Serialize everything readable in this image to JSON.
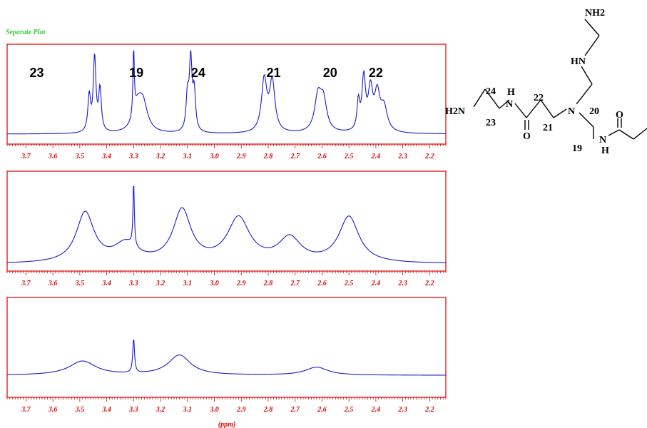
{
  "header": {
    "label": "Separate Plot"
  },
  "colors": {
    "frame": "#dd0000",
    "axis": "#dd0000",
    "trace": "#1a1acc",
    "header": "#33cc33",
    "structure": "#000000"
  },
  "chart_data": [
    {
      "type": "line",
      "x_unit": "ppm",
      "xlim": [
        3.77,
        2.14
      ],
      "xticks": [
        "3.7",
        "3.6",
        "3.5",
        "3.4",
        "3.3",
        "3.2",
        "3.1",
        "3.0",
        "2.9",
        "2.8",
        "2.7",
        "2.6",
        "2.5",
        "2.4",
        "2.3",
        "2.2"
      ],
      "baseline": 0.1,
      "ylim": [
        0,
        1
      ],
      "peaks": [
        {
          "x": 3.465,
          "h": 0.36,
          "w": 0.006
        },
        {
          "x": 3.445,
          "h": 0.74,
          "w": 0.006
        },
        {
          "x": 3.425,
          "h": 0.42,
          "w": 0.006
        },
        {
          "x": 3.3,
          "h": 0.66,
          "w": 0.003
        },
        {
          "x": 3.285,
          "h": 0.24,
          "w": 0.02
        },
        {
          "x": 3.265,
          "h": 0.26,
          "w": 0.02
        },
        {
          "x": 3.1,
          "h": 0.34,
          "w": 0.006
        },
        {
          "x": 3.088,
          "h": 0.7,
          "w": 0.006
        },
        {
          "x": 3.075,
          "h": 0.38,
          "w": 0.006
        },
        {
          "x": 2.815,
          "h": 0.52,
          "w": 0.012
        },
        {
          "x": 2.785,
          "h": 0.5,
          "w": 0.012
        },
        {
          "x": 2.615,
          "h": 0.34,
          "w": 0.015
        },
        {
          "x": 2.595,
          "h": 0.3,
          "w": 0.015
        },
        {
          "x": 2.465,
          "h": 0.28,
          "w": 0.006
        },
        {
          "x": 2.445,
          "h": 0.52,
          "w": 0.008
        },
        {
          "x": 2.42,
          "h": 0.4,
          "w": 0.01
        },
        {
          "x": 2.395,
          "h": 0.36,
          "w": 0.012
        },
        {
          "x": 2.37,
          "h": 0.24,
          "w": 0.015
        }
      ],
      "peak_labels": [
        {
          "text": "23",
          "ppm": 3.66
        },
        {
          "text": "19",
          "ppm": 3.29
        },
        {
          "text": "24",
          "ppm": 3.06
        },
        {
          "text": "21",
          "ppm": 2.78
        },
        {
          "text": "20",
          "ppm": 2.57
        },
        {
          "text": "22",
          "ppm": 2.4
        }
      ]
    },
    {
      "type": "line",
      "x_unit": "ppm",
      "xlim": [
        3.77,
        2.14
      ],
      "xticks": [
        "3.7",
        "3.6",
        "3.5",
        "3.4",
        "3.3",
        "3.2",
        "3.1",
        "3.0",
        "2.9",
        "2.8",
        "2.7",
        "2.6",
        "2.5",
        "2.4",
        "2.3",
        "2.2"
      ],
      "baseline": 0.07,
      "ylim": [
        0,
        1
      ],
      "peaks": [
        {
          "x": 3.48,
          "h": 0.5,
          "w": 0.04
        },
        {
          "x": 3.33,
          "h": 0.18,
          "w": 0.05
        },
        {
          "x": 3.3,
          "h": 0.64,
          "w": 0.003
        },
        {
          "x": 3.12,
          "h": 0.52,
          "w": 0.04
        },
        {
          "x": 2.91,
          "h": 0.44,
          "w": 0.05
        },
        {
          "x": 2.72,
          "h": 0.24,
          "w": 0.05
        },
        {
          "x": 2.5,
          "h": 0.46,
          "w": 0.045
        }
      ],
      "peak_labels": []
    },
    {
      "type": "line",
      "x_unit": "ppm",
      "xlabel": "(ppm)",
      "xlim": [
        3.77,
        2.14
      ],
      "xticks": [
        "3.7",
        "3.6",
        "3.5",
        "3.4",
        "3.3",
        "3.2",
        "3.1",
        "3.0",
        "2.9",
        "2.8",
        "2.7",
        "2.6",
        "2.5",
        "2.4",
        "2.3",
        "2.2"
      ],
      "baseline": 0.22,
      "ylim": [
        0,
        1
      ],
      "peaks": [
        {
          "x": 3.49,
          "h": 0.14,
          "w": 0.06
        },
        {
          "x": 3.3,
          "h": 0.34,
          "w": 0.004
        },
        {
          "x": 3.13,
          "h": 0.2,
          "w": 0.05
        },
        {
          "x": 2.62,
          "h": 0.08,
          "w": 0.05
        }
      ],
      "peak_labels": []
    }
  ],
  "structure": {
    "atoms": [
      "NH2",
      "HN",
      "H",
      "N",
      "H2N",
      "O",
      "N",
      "O",
      "N",
      "H"
    ],
    "numbers": [
      "24",
      "23",
      "22",
      "21",
      "20",
      "19"
    ]
  }
}
